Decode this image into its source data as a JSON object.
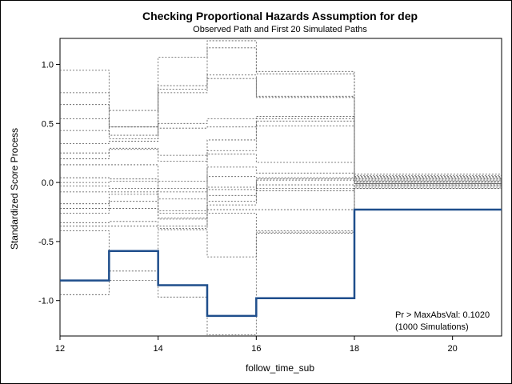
{
  "chart_data": {
    "type": "line",
    "title": "Checking Proportional Hazards Assumption for dep",
    "subtitle": "Observed Path and First 20 Simulated Paths",
    "xlabel": "follow_time_sub",
    "ylabel": "Standardized Score Process",
    "xlim": [
      12,
      21
    ],
    "ylim": [
      -1.3,
      1.22
    ],
    "xticks": [
      12,
      14,
      16,
      18,
      20
    ],
    "xtick_labels": [
      "12",
      "14",
      "16",
      "18",
      "20"
    ],
    "yticks": [
      -1.0,
      -0.5,
      0.0,
      0.5,
      1.0
    ],
    "ytick_labels": [
      "-1.0",
      "-0.5",
      "0.0",
      "0.5",
      "1.0"
    ],
    "step_x": [
      12,
      13,
      14,
      15,
      16,
      18,
      21
    ],
    "observed": {
      "color": "#1f4e8c",
      "values": [
        -0.83,
        -0.58,
        -0.87,
        -1.13,
        -0.98,
        -0.23
      ]
    },
    "simulated": {
      "color": "#555555",
      "paths": [
        [
          0.95,
          0.61,
          1.06,
          1.2,
          0.94,
          0.07
        ],
        [
          0.76,
          0.47,
          0.82,
          1.14,
          0.92,
          0.06
        ],
        [
          0.66,
          0.47,
          0.79,
          0.91,
          0.73,
          0.05
        ],
        [
          0.54,
          0.4,
          0.76,
          0.88,
          0.72,
          0.04
        ],
        [
          0.44,
          0.37,
          0.5,
          0.54,
          0.56,
          0.04
        ],
        [
          0.33,
          0.35,
          0.46,
          0.47,
          0.54,
          0.03
        ],
        [
          0.25,
          0.29,
          0.23,
          0.36,
          0.52,
          0.02
        ],
        [
          0.2,
          0.28,
          0.18,
          0.27,
          0.48,
          0.02
        ],
        [
          0.15,
          0.15,
          0.01,
          0.24,
          0.17,
          0.01
        ],
        [
          0.04,
          0.03,
          -0.05,
          0.13,
          0.08,
          0.01
        ],
        [
          0.0,
          0.01,
          -0.08,
          0.05,
          0.04,
          0.0
        ],
        [
          -0.03,
          -0.05,
          -0.14,
          -0.04,
          0.03,
          0.0
        ],
        [
          -0.08,
          -0.08,
          -0.24,
          -0.06,
          0.02,
          -0.01
        ],
        [
          -0.18,
          -0.1,
          -0.26,
          -0.11,
          -0.02,
          -0.01
        ],
        [
          -0.22,
          -0.16,
          -0.3,
          -0.16,
          -0.05,
          -0.02
        ],
        [
          -0.26,
          -0.22,
          -0.31,
          -0.19,
          -0.07,
          -0.02
        ],
        [
          -0.34,
          -0.33,
          -0.37,
          -0.23,
          -0.23,
          -0.03
        ],
        [
          -0.37,
          -0.37,
          -0.39,
          -0.26,
          -0.41,
          -0.04
        ],
        [
          -0.41,
          -0.75,
          -0.4,
          -0.63,
          -0.42,
          -0.05
        ],
        [
          -0.95,
          -0.83,
          -0.97,
          -1.29,
          -0.43,
          -0.05
        ]
      ]
    },
    "annotation": {
      "line1": "Pr > MaxAbsVal: 0.1020",
      "line2": "(1000 Simulations)"
    }
  }
}
